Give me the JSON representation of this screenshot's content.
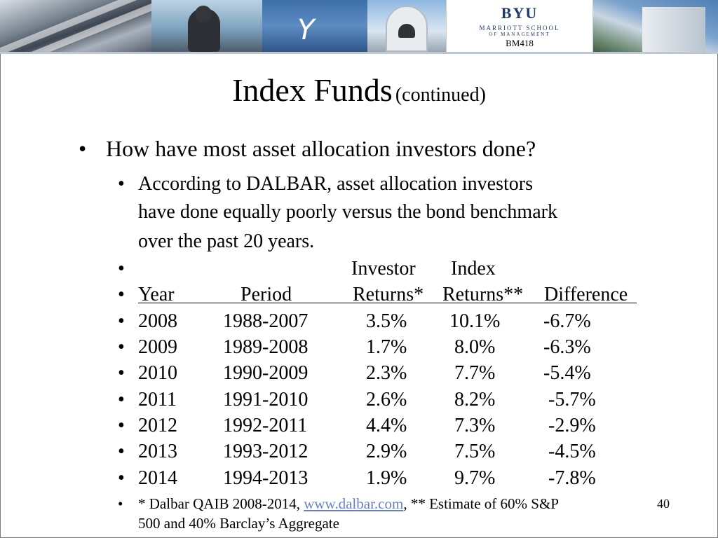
{
  "banner": {
    "logo_main": "BYU",
    "logo_line1": "MARRIOTT SCHOOL",
    "logo_line2": "OF MANAGEMENT",
    "course": "BM418"
  },
  "slide": {
    "title": "Index Funds",
    "title_suffix": "(continued)",
    "bullet1": "How have most asset allocation investors done?",
    "bullet2_lines": [
      "According to DALBAR, asset allocation investors",
      "have done equally poorly versus the bond benchmark",
      "over the past 20 years."
    ],
    "header_row1": {
      "investor": "Investor",
      "index": "Index"
    },
    "header_row2": {
      "year": "Year",
      "period": "Period",
      "investor": "Returns*",
      "index": "Returns**",
      "difference": "Difference"
    },
    "rows": [
      {
        "year": "2008",
        "period": "1988-2007",
        "investor": "3.5%",
        "index": "10.1%",
        "difference": "-6.7%"
      },
      {
        "year": "2009",
        "period": "1989-2008",
        "investor": "1.7%",
        "index": "8.0%",
        "difference": "-6.3%"
      },
      {
        "year": "2010",
        "period": "1990-2009",
        "investor": "2.3%",
        "index": "7.7%",
        "difference": "-5.4%"
      },
      {
        "year": "2011",
        "period": "1991-2010",
        "investor": "2.6%",
        "index": "8.2%",
        "difference": "-5.7%"
      },
      {
        "year": "2012",
        "period": "1992-2011",
        "investor": "4.4%",
        "index": "7.3%",
        "difference": "-2.9%"
      },
      {
        "year": "2013",
        "period": "1993-2012",
        "investor": "2.9%",
        "index": "7.5%",
        "difference": "-4.5%"
      },
      {
        "year": "2014",
        "period": "1994-2013",
        "investor": "1.9%",
        "index": "9.7%",
        "difference": "-7.8%"
      }
    ],
    "footnote_prefix": "* Dalbar QAIB 2008-2014, ",
    "footnote_link": "www.dalbar.com",
    "footnote_suffix": ", ** Estimate of 60% S&P",
    "footnote_line2": "500 and 40% Barclay’s Aggregate",
    "bullet_char": "•",
    "page_number": "40"
  }
}
